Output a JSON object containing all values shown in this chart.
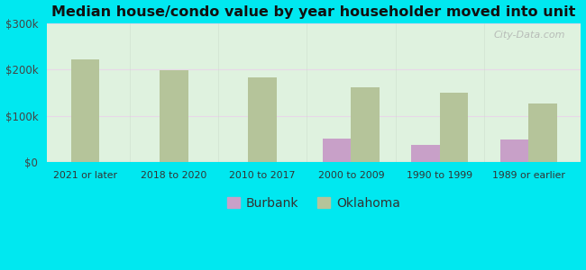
{
  "title": "Median house/condo value by year householder moved into unit",
  "categories": [
    "2021 or later",
    "2018 to 2020",
    "2010 to 2017",
    "2000 to 2009",
    "1990 to 1999",
    "1989 or earlier"
  ],
  "burbank_values": [
    0,
    0,
    0,
    52000,
    38000,
    50000
  ],
  "oklahoma_values": [
    222000,
    198000,
    183000,
    162000,
    150000,
    127000
  ],
  "burbank_color": "#c8a0c8",
  "oklahoma_color": "#b5c49a",
  "background_outer": "#00e8f0",
  "background_inner": "#e0f2e0",
  "ylim": [
    0,
    300000
  ],
  "yticks": [
    0,
    100000,
    200000,
    300000
  ],
  "ytick_labels": [
    "$0",
    "$100k",
    "$200k",
    "$300k"
  ],
  "bar_width": 0.32,
  "legend_labels": [
    "Burbank",
    "Oklahoma"
  ],
  "watermark": "City-Data.com"
}
